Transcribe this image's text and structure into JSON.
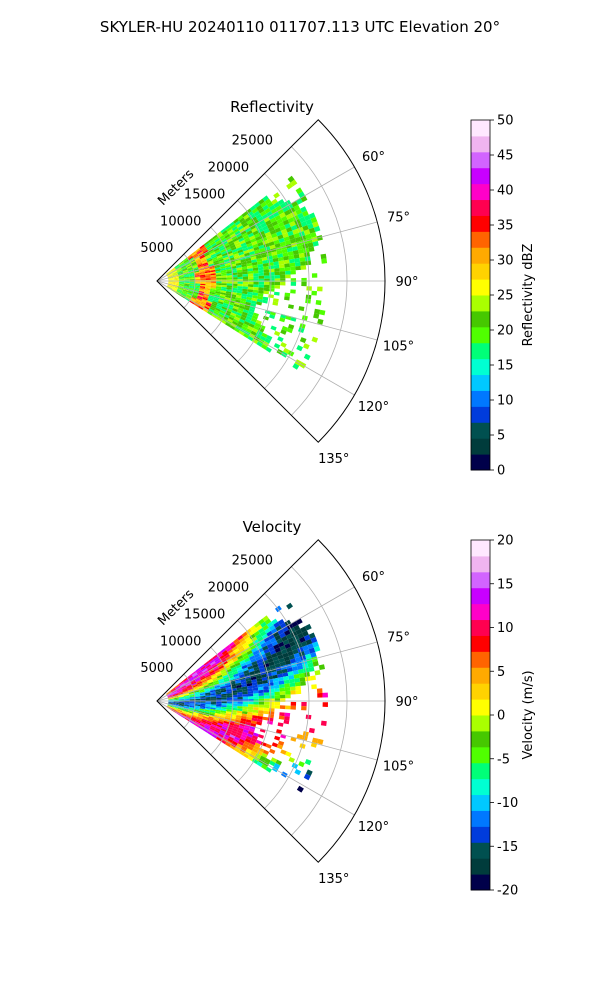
{
  "figure": {
    "suptitle": "SKYLER-HU  20240110  011707.113 UTC Elevation 20°"
  },
  "chart_data": [
    {
      "type": "heatmap",
      "projection": "polar-sector",
      "title": "Reflectivity",
      "radial_label": "Meters",
      "radial_ticks": [
        "5000",
        "10000",
        "15000",
        "20000",
        "25000"
      ],
      "radial_tick_values": [
        5000,
        10000,
        15000,
        20000,
        25000
      ],
      "rlim": [
        0,
        30000
      ],
      "angle_ticks": [
        "60°",
        "75°",
        "90°",
        "105°",
        "120°",
        "135°"
      ],
      "angle_tick_values": [
        60,
        75,
        90,
        105,
        120,
        135
      ],
      "angle_range": [
        45,
        135
      ],
      "grid": true,
      "data_extent": {
        "angle_min": 52,
        "angle_max": 122,
        "range_max": 22000
      },
      "colorbar": {
        "label": "Reflectivity dBZ",
        "ticks": [
          "0",
          "5",
          "10",
          "15",
          "20",
          "25",
          "30",
          "35",
          "40",
          "45",
          "50"
        ],
        "range": [
          0,
          50
        ],
        "colors": [
          "#00004a",
          "#003c3c",
          "#005050",
          "#003cdc",
          "#0078ff",
          "#00c8ff",
          "#00ffd2",
          "#00ff78",
          "#50ff00",
          "#46c800",
          "#aaff00",
          "#ffff00",
          "#ffd200",
          "#ffaa00",
          "#ff6400",
          "#ff0000",
          "#ff0050",
          "#ff00c8",
          "#c800ff",
          "#d264ff",
          "#f0b4f0",
          "#ffe8ff"
        ]
      }
    },
    {
      "type": "heatmap",
      "projection": "polar-sector",
      "title": "Velocity",
      "radial_label": "Meters",
      "radial_ticks": [
        "5000",
        "10000",
        "15000",
        "20000",
        "25000"
      ],
      "radial_tick_values": [
        5000,
        10000,
        15000,
        20000,
        25000
      ],
      "rlim": [
        0,
        30000
      ],
      "angle_ticks": [
        "60°",
        "75°",
        "90°",
        "105°",
        "120°",
        "135°"
      ],
      "angle_tick_values": [
        60,
        75,
        90,
        105,
        120,
        135
      ],
      "angle_range": [
        45,
        135
      ],
      "grid": true,
      "data_extent": {
        "angle_min": 52,
        "angle_max": 122,
        "range_max": 22000
      },
      "colorbar": {
        "label": "Velocity (m/s)",
        "ticks": [
          "-20",
          "-15",
          "-10",
          "-5",
          "0",
          "5",
          "10",
          "15",
          "20"
        ],
        "range": [
          -20,
          20
        ],
        "colors": [
          "#00004a",
          "#003c3c",
          "#005050",
          "#003cdc",
          "#0078ff",
          "#00c8ff",
          "#00ffd2",
          "#00ff78",
          "#50ff00",
          "#46c800",
          "#aaff00",
          "#ffff00",
          "#ffd200",
          "#ffaa00",
          "#ff6400",
          "#ff0000",
          "#ff0050",
          "#ff00c8",
          "#c800ff",
          "#d264ff",
          "#f0b4f0",
          "#ffe8ff"
        ]
      }
    }
  ]
}
